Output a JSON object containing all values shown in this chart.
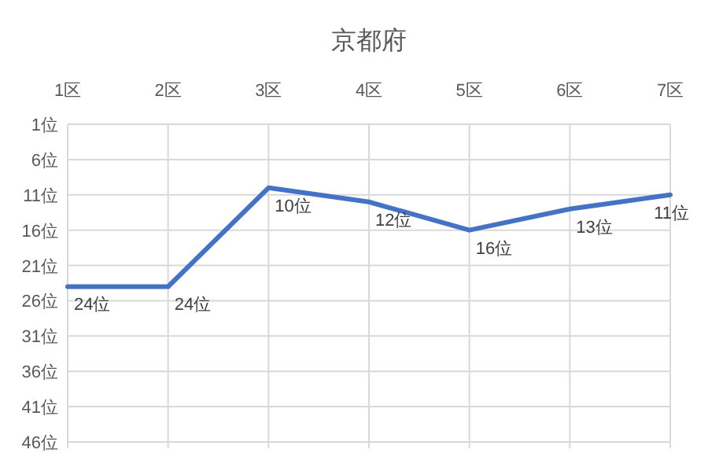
{
  "chart_data": {
    "type": "line",
    "title": "京都府",
    "categories": [
      "1区",
      "2区",
      "3区",
      "4区",
      "5区",
      "6区",
      "7区"
    ],
    "series": [
      {
        "color": "#4472c4",
        "values": [
          24,
          24,
          10,
          12,
          16,
          13,
          11
        ],
        "value_labels": [
          "24位",
          "24位",
          "10位",
          "12位",
          "16位",
          "13位",
          "11位"
        ]
      }
    ],
    "ylim": [
      46,
      1
    ],
    "yticks": [
      {
        "value": 1,
        "label": "1位"
      },
      {
        "value": 6,
        "label": "6位"
      },
      {
        "value": 11,
        "label": "11位"
      },
      {
        "value": 16,
        "label": "16位"
      },
      {
        "value": 21,
        "label": "21位"
      },
      {
        "value": 26,
        "label": "26位"
      },
      {
        "value": 31,
        "label": "31位"
      },
      {
        "value": 36,
        "label": "36位"
      },
      {
        "value": 41,
        "label": "41位"
      },
      {
        "value": 46,
        "label": "46位"
      }
    ],
    "grid": true,
    "marker": "none",
    "line_style": "solid"
  }
}
